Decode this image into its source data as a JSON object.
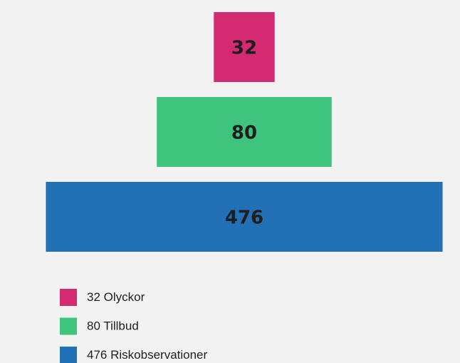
{
  "chart_data": {
    "type": "pyramid",
    "categories": [
      "Olyckor",
      "Tillbud",
      "Riskobservationer"
    ],
    "values": [
      32,
      80,
      476
    ],
    "colors": [
      "#d42a72",
      "#3ec47c",
      "#2270b5"
    ]
  }
}
